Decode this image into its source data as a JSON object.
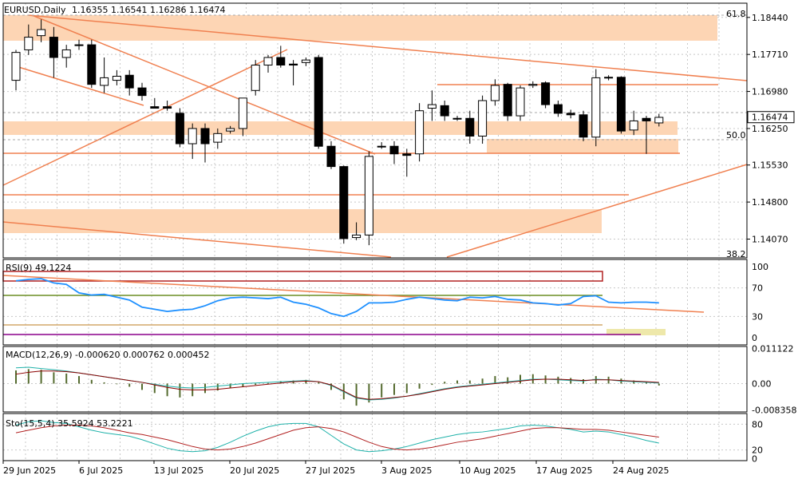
{
  "header": {
    "symbol": "EURUSD,Daily",
    "ohlc": "1.16355 1.16541 1.16286 1.16474"
  },
  "current_price": "1.16474",
  "fib_labels": [
    "61.8",
    "50.0",
    "38.2"
  ],
  "colors": {
    "bull_candle": "#ffffff",
    "bear_candle": "#000000",
    "zone_fill": "#fdd5b4",
    "trendline": "#f08050",
    "rsi_line": "#1e90ff",
    "macd_hist": "#556b2f",
    "macd_signal": "#8b0000",
    "macd_main": "#20b2aa",
    "sto_main": "#20b2aa",
    "sto_signal": "#b22222",
    "grid": "#c8c8c8"
  },
  "chart_data": [
    {
      "type": "candlestick",
      "panel": "price",
      "title": "EURUSD,Daily",
      "ylim": [
        1.137,
        1.1872
      ],
      "y_ticks": [
        "1.18440",
        "1.17710",
        "1.16980",
        "1.16250",
        "1.15530",
        "1.14800",
        "1.14070"
      ],
      "x_ticks": [
        "29 Jun 2025",
        "6 Jul 2025",
        "13 Jul 2025",
        "20 Jul 2025",
        "27 Jul 2025",
        "3 Aug 2025",
        "10 Aug 2025",
        "17 Aug 2025",
        "24 Aug 2025"
      ],
      "candles": [
        {
          "o": 1.172,
          "h": 1.178,
          "l": 1.17,
          "c": 1.1775
        },
        {
          "o": 1.178,
          "h": 1.183,
          "l": 1.177,
          "c": 1.1805
        },
        {
          "o": 1.1808,
          "h": 1.184,
          "l": 1.1795,
          "c": 1.182
        },
        {
          "o": 1.1805,
          "h": 1.1825,
          "l": 1.1725,
          "c": 1.1765
        },
        {
          "o": 1.1765,
          "h": 1.179,
          "l": 1.1745,
          "c": 1.178
        },
        {
          "o": 1.179,
          "h": 1.18,
          "l": 1.178,
          "c": 1.179
        },
        {
          "o": 1.179,
          "h": 1.18,
          "l": 1.1705,
          "c": 1.1712
        },
        {
          "o": 1.171,
          "h": 1.1765,
          "l": 1.1695,
          "c": 1.1725
        },
        {
          "o": 1.172,
          "h": 1.174,
          "l": 1.171,
          "c": 1.1728
        },
        {
          "o": 1.173,
          "h": 1.174,
          "l": 1.169,
          "c": 1.1705
        },
        {
          "o": 1.1705,
          "h": 1.1715,
          "l": 1.168,
          "c": 1.169
        },
        {
          "o": 1.1668,
          "h": 1.1685,
          "l": 1.1665,
          "c": 1.1665
        },
        {
          "o": 1.1668,
          "h": 1.168,
          "l": 1.166,
          "c": 1.1665
        },
        {
          "o": 1.1655,
          "h": 1.1665,
          "l": 1.1588,
          "c": 1.1595
        },
        {
          "o": 1.1595,
          "h": 1.1635,
          "l": 1.1565,
          "c": 1.1625
        },
        {
          "o": 1.1625,
          "h": 1.1635,
          "l": 1.1558,
          "c": 1.1595
        },
        {
          "o": 1.1598,
          "h": 1.1625,
          "l": 1.1585,
          "c": 1.1615
        },
        {
          "o": 1.162,
          "h": 1.163,
          "l": 1.1615,
          "c": 1.1625
        },
        {
          "o": 1.1625,
          "h": 1.1685,
          "l": 1.161,
          "c": 1.1685
        },
        {
          "o": 1.17,
          "h": 1.176,
          "l": 1.169,
          "c": 1.175
        },
        {
          "o": 1.175,
          "h": 1.177,
          "l": 1.1735,
          "c": 1.1765
        },
        {
          "o": 1.1765,
          "h": 1.1788,
          "l": 1.1745,
          "c": 1.175
        },
        {
          "o": 1.1752,
          "h": 1.176,
          "l": 1.171,
          "c": 1.175
        },
        {
          "o": 1.1755,
          "h": 1.1765,
          "l": 1.1748,
          "c": 1.176
        },
        {
          "o": 1.1765,
          "h": 1.177,
          "l": 1.1585,
          "c": 1.159
        },
        {
          "o": 1.159,
          "h": 1.16,
          "l": 1.1545,
          "c": 1.155
        },
        {
          "o": 1.155,
          "h": 1.1552,
          "l": 1.1398,
          "c": 1.1408
        },
        {
          "o": 1.141,
          "h": 1.144,
          "l": 1.1405,
          "c": 1.1415
        },
        {
          "o": 1.1415,
          "h": 1.158,
          "l": 1.1395,
          "c": 1.157
        },
        {
          "o": 1.159,
          "h": 1.1598,
          "l": 1.1585,
          "c": 1.159
        },
        {
          "o": 1.159,
          "h": 1.16,
          "l": 1.1555,
          "c": 1.1575
        },
        {
          "o": 1.1575,
          "h": 1.1585,
          "l": 1.153,
          "c": 1.1572
        },
        {
          "o": 1.1575,
          "h": 1.1675,
          "l": 1.156,
          "c": 1.166
        },
        {
          "o": 1.1665,
          "h": 1.17,
          "l": 1.164,
          "c": 1.1672
        },
        {
          "o": 1.167,
          "h": 1.168,
          "l": 1.164,
          "c": 1.165
        },
        {
          "o": 1.1645,
          "h": 1.165,
          "l": 1.164,
          "c": 1.1645
        },
        {
          "o": 1.1645,
          "h": 1.166,
          "l": 1.1595,
          "c": 1.161
        },
        {
          "o": 1.161,
          "h": 1.169,
          "l": 1.1595,
          "c": 1.168
        },
        {
          "o": 1.168,
          "h": 1.1722,
          "l": 1.167,
          "c": 1.171
        },
        {
          "o": 1.1712,
          "h": 1.1715,
          "l": 1.164,
          "c": 1.165
        },
        {
          "o": 1.165,
          "h": 1.171,
          "l": 1.164,
          "c": 1.1705
        },
        {
          "o": 1.171,
          "h": 1.1718,
          "l": 1.1705,
          "c": 1.1712
        },
        {
          "o": 1.1715,
          "h": 1.1718,
          "l": 1.1665,
          "c": 1.1672
        },
        {
          "o": 1.1672,
          "h": 1.168,
          "l": 1.1648,
          "c": 1.1655
        },
        {
          "o": 1.1655,
          "h": 1.1662,
          "l": 1.1645,
          "c": 1.1652
        },
        {
          "o": 1.1652,
          "h": 1.166,
          "l": 1.16,
          "c": 1.1608
        },
        {
          "o": 1.1608,
          "h": 1.1742,
          "l": 1.159,
          "c": 1.1725
        },
        {
          "o": 1.1725,
          "h": 1.173,
          "l": 1.172,
          "c": 1.1726
        },
        {
          "o": 1.1726,
          "h": 1.1728,
          "l": 1.1615,
          "c": 1.162
        },
        {
          "o": 1.1622,
          "h": 1.166,
          "l": 1.1612,
          "c": 1.164
        },
        {
          "o": 1.1645,
          "h": 1.165,
          "l": 1.1575,
          "c": 1.164
        },
        {
          "o": 1.1636,
          "h": 1.1654,
          "l": 1.1629,
          "c": 1.1647
        }
      ]
    },
    {
      "type": "line",
      "panel": "rsi",
      "title": "RSI(9) 49.1224",
      "ylim": [
        0,
        100
      ],
      "y_ticks": [
        "100",
        "70",
        "30",
        "0"
      ],
      "series": [
        {
          "name": "RSI(9)",
          "values": [
            80,
            82,
            83,
            77,
            75,
            63,
            60,
            61,
            57,
            53,
            43,
            40,
            37,
            39,
            40,
            45,
            52,
            56,
            57,
            56,
            55,
            57,
            50,
            47,
            42,
            34,
            30,
            37,
            49,
            49,
            50,
            54,
            57,
            55,
            53,
            52,
            57,
            56,
            58,
            54,
            53,
            49,
            48,
            46,
            48,
            58,
            59,
            50,
            49,
            50,
            50,
            49
          ]
        }
      ]
    },
    {
      "type": "bar",
      "panel": "macd",
      "title": "MACD(12,26,9) -0.000620 0.000762 0.000452",
      "ylim": [
        -0.009,
        0.0118
      ],
      "y_ticks": [
        "0.011122",
        "0.00",
        "-0.008358"
      ],
      "series": [
        {
          "name": "histogram",
          "values": [
            0.0042,
            0.0046,
            0.0044,
            0.0036,
            0.0032,
            0.0024,
            0.0012,
            0.0004,
            -0.0002,
            -0.001,
            -0.002,
            -0.003,
            -0.004,
            -0.0044,
            -0.004,
            -0.003,
            -0.0022,
            -0.0014,
            -0.001,
            -0.0004,
            0.0002,
            0.0008,
            0.001,
            0.0012,
            0.0004,
            -0.002,
            -0.005,
            -0.007,
            -0.006,
            -0.0044,
            -0.0036,
            -0.003,
            -0.0016,
            -0.0004,
            0.0006,
            0.001,
            0.001,
            0.0016,
            0.0024,
            0.002,
            0.0028,
            0.003,
            0.0026,
            0.0022,
            0.0018,
            0.0014,
            0.0024,
            0.0022,
            0.0016,
            0.001,
            0.0006,
            -0.0006
          ]
        },
        {
          "name": "signal",
          "values": [
            0.003,
            0.0036,
            0.004,
            0.004,
            0.0038,
            0.0034,
            0.0028,
            0.0022,
            0.0016,
            0.001,
            0.0004,
            -0.0004,
            -0.0012,
            -0.0018,
            -0.002,
            -0.002,
            -0.0018,
            -0.0014,
            -0.001,
            -0.0006,
            -0.0002,
            0.0002,
            0.0006,
            0.0008,
            0.0006,
            -0.0004,
            -0.0024,
            -0.0044,
            -0.005,
            -0.0048,
            -0.0044,
            -0.004,
            -0.0034,
            -0.0026,
            -0.0018,
            -0.0012,
            -0.0008,
            -0.0004,
            0.0,
            0.0004,
            0.0008,
            0.0012,
            0.0014,
            0.0014,
            0.0012,
            0.001,
            0.0012,
            0.0012,
            0.001,
            0.0008,
            0.0006,
            0.0004
          ]
        },
        {
          "name": "main",
          "values": [
            0.005,
            0.0052,
            0.0048,
            0.0044,
            0.004,
            0.0034,
            0.0028,
            0.0022,
            0.0016,
            0.001,
            0.0004,
            -0.0002,
            -0.0008,
            -0.0012,
            -0.0014,
            -0.0012,
            -0.0008,
            -0.0004,
            0.0,
            0.0002,
            0.0004,
            0.0006,
            0.0008,
            0.001,
            0.0006,
            -0.0006,
            -0.0026,
            -0.0046,
            -0.0052,
            -0.005,
            -0.0046,
            -0.004,
            -0.0032,
            -0.0024,
            -0.0016,
            -0.001,
            -0.0006,
            -0.0002,
            0.0002,
            0.0006,
            0.001,
            0.0014,
            0.0014,
            0.0012,
            0.001,
            0.0008,
            0.0014,
            0.0012,
            0.0008,
            0.0006,
            0.0004,
            0.0002
          ]
        }
      ]
    },
    {
      "type": "line",
      "panel": "stochastic",
      "title": "Sto(15,5,4) 35.5924 53.2221",
      "ylim": [
        0,
        100
      ],
      "y_ticks": [
        "80",
        "20",
        "0"
      ],
      "series": [
        {
          "name": "main",
          "values": [
            78,
            86,
            88,
            84,
            82,
            74,
            66,
            60,
            56,
            52,
            44,
            34,
            24,
            18,
            16,
            18,
            26,
            38,
            52,
            64,
            74,
            80,
            82,
            82,
            74,
            54,
            34,
            20,
            16,
            18,
            22,
            28,
            36,
            44,
            50,
            56,
            60,
            62,
            66,
            70,
            76,
            78,
            76,
            72,
            68,
            62,
            64,
            62,
            56,
            50,
            42,
            36
          ]
        },
        {
          "name": "signal",
          "values": [
            60,
            66,
            72,
            76,
            78,
            78,
            76,
            72,
            66,
            60,
            56,
            50,
            44,
            36,
            28,
            22,
            20,
            22,
            28,
            36,
            46,
            56,
            66,
            72,
            74,
            70,
            62,
            50,
            38,
            28,
            22,
            20,
            22,
            26,
            32,
            38,
            42,
            46,
            52,
            58,
            64,
            70,
            72,
            72,
            70,
            68,
            68,
            66,
            62,
            58,
            54,
            50
          ]
        }
      ]
    }
  ]
}
